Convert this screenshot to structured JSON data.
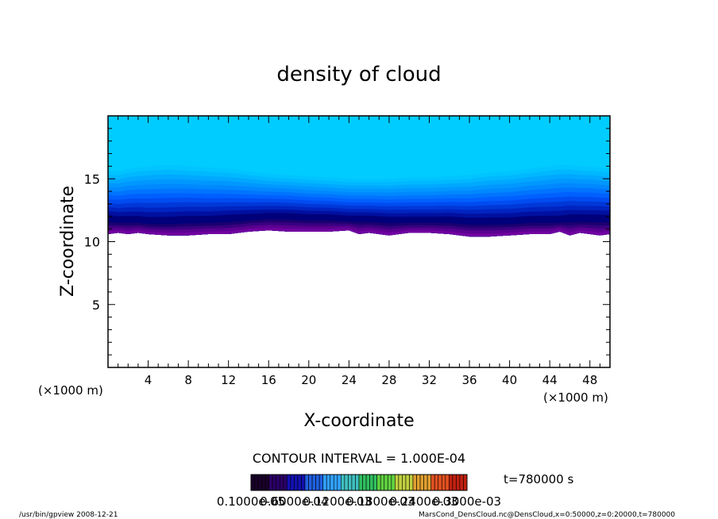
{
  "chart_data": {
    "type": "heatmap",
    "title": "density of cloud",
    "xlabel": "X-coordinate",
    "ylabel": "Z-coordinate",
    "x_unit": "(×1000 m)",
    "x_ticks": [
      4,
      8,
      12,
      16,
      20,
      24,
      28,
      32,
      36,
      40,
      44,
      48
    ],
    "y_ticks": [
      5,
      10,
      15
    ],
    "xlim": [
      0,
      50
    ],
    "ylim": [
      0,
      20
    ],
    "contour_interval": "CONTOUR INTERVAL = 1.000E-04",
    "time_label": "t=780000 s",
    "colorbar_labels": [
      "0.1000e-05",
      "0.6000e-04",
      "0.1200e-03",
      "0.1800e-03",
      "0.2400e-03",
      "0.3000e-03"
    ],
    "cloud_base_x": [
      0,
      1,
      2,
      3,
      4,
      6,
      8,
      10,
      12,
      14,
      16,
      18,
      20,
      22,
      24,
      25,
      26,
      28,
      30,
      32,
      34,
      36,
      38,
      40,
      42,
      44,
      45,
      46,
      47,
      48,
      49,
      50
    ],
    "cloud_base_z": [
      10.6,
      10.7,
      10.6,
      10.7,
      10.6,
      10.5,
      10.5,
      10.6,
      10.6,
      10.8,
      10.9,
      10.8,
      10.8,
      10.8,
      10.9,
      10.6,
      10.7,
      10.5,
      10.7,
      10.7,
      10.6,
      10.4,
      10.4,
      10.5,
      10.6,
      10.6,
      10.8,
      10.5,
      10.7,
      10.6,
      10.5,
      10.6
    ],
    "cloud_peak_z": [
      11.8,
      11.7,
      11.7,
      11.7,
      11.6,
      11.6,
      11.7,
      11.7,
      11.8,
      11.9,
      12.0,
      12.0,
      11.9,
      11.9,
      11.8,
      11.8,
      11.8,
      11.7,
      11.7,
      11.7,
      11.7,
      11.6,
      11.6,
      11.6,
      11.7,
      11.7,
      11.7,
      11.8,
      11.8,
      11.8,
      11.8,
      11.8
    ],
    "cloud_fade_z": [
      15.6,
      15.6,
      15.8,
      15.9,
      16.0,
      16.1,
      16.0,
      15.9,
      15.8,
      15.6,
      15.4,
      15.3,
      15.2,
      15.1,
      15.0,
      15.0,
      15.0,
      15.0,
      15.1,
      15.1,
      15.2,
      15.3,
      15.5,
      15.6,
      15.8,
      16.0,
      16.1,
      16.1,
      16.0,
      16.0,
      15.9,
      15.8
    ],
    "colors": {
      "background_fill": "#00ccff",
      "band_colors": [
        "#00c4ff",
        "#00b8ff",
        "#00a8ff",
        "#0098ff",
        "#0088ff",
        "#0074ff",
        "#0060ff",
        "#004cf0",
        "#0038d8",
        "#0024c0",
        "#0010a0",
        "#00007a",
        "#1a0070",
        "#3a0080",
        "#5a0090",
        "#7000a0"
      ],
      "colorbar": [
        "#1a002a",
        "#2a0066",
        "#1010b0",
        "#2060e0",
        "#30a0ff",
        "#40c0c0",
        "#30c060",
        "#60d040",
        "#c0d040",
        "#e0a030",
        "#e05020",
        "#c02010"
      ]
    }
  },
  "footer": {
    "left": "/usr/bin/gpview   2008-12-21",
    "right": "MarsCond_DensCloud.nc@DensCloud,x=0:50000,z=0:20000,t=780000"
  }
}
